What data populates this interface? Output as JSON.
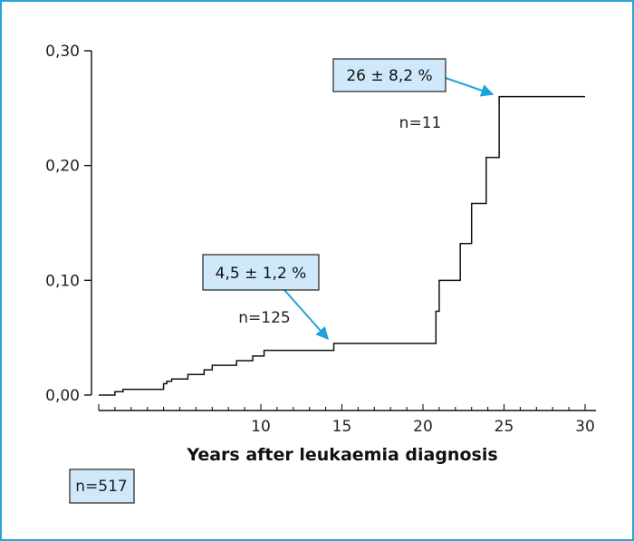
{
  "chart_data": {
    "type": "line",
    "title": "",
    "xlabel": "Years after leukaemia diagnosis",
    "ylabel": "",
    "xlim": [
      0,
      30
    ],
    "ylim": [
      0,
      0.3
    ],
    "x_ticks": [
      10,
      15,
      20,
      25,
      30
    ],
    "x_tick_labels": [
      "10",
      "15",
      "20",
      "25",
      "30"
    ],
    "y_ticks": [
      0,
      0.1,
      0.2,
      0.3
    ],
    "y_tick_labels": [
      "0,00",
      "0,10",
      "0,20",
      "0,30"
    ],
    "grid": false,
    "legend": "none",
    "series": [
      {
        "style": "step",
        "color": "#111111",
        "x": [
          0,
          1,
          1.5,
          4,
          4.2,
          4.5,
          5.5,
          6.5,
          7,
          8.5,
          9.5,
          10.2,
          14.5,
          20.8,
          21,
          22.3,
          23,
          23.9,
          24.7,
          30
        ],
        "y": [
          0,
          0.003,
          0.005,
          0.01,
          0.012,
          0.014,
          0.018,
          0.022,
          0.026,
          0.03,
          0.034,
          0.039,
          0.045,
          0.073,
          0.1,
          0.132,
          0.167,
          0.207,
          0.26,
          0.26
        ]
      }
    ],
    "annotations": [
      {
        "text": "4,5 ± 1,2 %",
        "x": 14.3,
        "y": 0.045,
        "count_label": "n=125"
      },
      {
        "text": "26 ± 8,2 %",
        "x": 24.7,
        "y": 0.26,
        "count_label": "n=11"
      }
    ],
    "total_label": "n=517"
  },
  "colors": {
    "frame": "#2ba3d9",
    "callout_fill": "#cfe9fa",
    "callout_border": "#222222",
    "arrow": "#1ea1dc",
    "line": "#111111"
  }
}
